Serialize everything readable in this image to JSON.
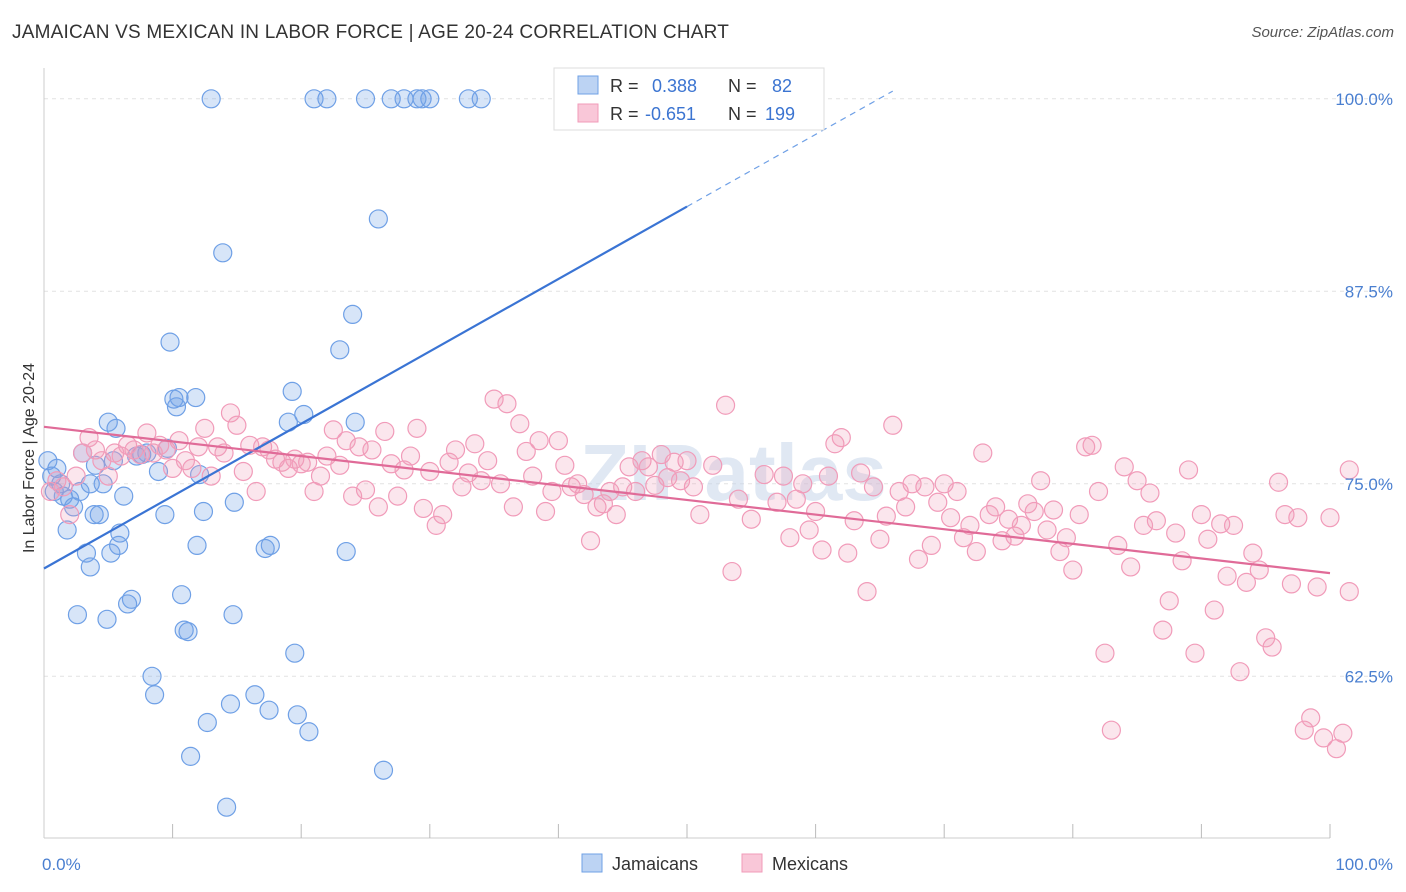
{
  "title": "JAMAICAN VS MEXICAN IN LABOR FORCE | AGE 20-24 CORRELATION CHART",
  "source": "Source: ZipAtlas.com",
  "watermark": "ZIPatlas",
  "colors": {
    "jamaicans": "#6fa0e6",
    "jamaicans_line": "#3a74d4",
    "mexicans": "#f19bb9",
    "mexicans_line": "#e06b98"
  },
  "chart_data": {
    "type": "scatter",
    "ylabel": "In Labor Force | Age 20-24",
    "xlim": [
      0,
      100
    ],
    "ylim": [
      52,
      102
    ],
    "y_ticks": [
      {
        "v": 100,
        "label": "100.0%"
      },
      {
        "v": 87.5,
        "label": "87.5%"
      },
      {
        "v": 75,
        "label": "75.0%"
      },
      {
        "v": 62.5,
        "label": "62.5%"
      }
    ],
    "x_tick_labels": {
      "left": "0.0%",
      "right": "100.0%"
    },
    "legend": {
      "r_label": "R =",
      "n_label": "N =",
      "rows": [
        {
          "series": "Jamaicans",
          "r": "0.388",
          "n": "82"
        },
        {
          "series": "Mexicans",
          "r": "-0.651",
          "n": "199"
        }
      ]
    },
    "series": [
      {
        "name": "Jamaicans",
        "trend": {
          "x0": 0,
          "y0": 69.5,
          "x1": 50,
          "y1": 93.0,
          "dash_to_x": 66,
          "dash_to_y": 100.5
        },
        "points": [
          [
            0.3,
            76.5
          ],
          [
            0.6,
            75.5
          ],
          [
            0.8,
            74.5
          ],
          [
            1.0,
            76.0
          ],
          [
            1.3,
            75.0
          ],
          [
            1.5,
            74.2
          ],
          [
            1.8,
            72.0
          ],
          [
            2.0,
            74.0
          ],
          [
            2.3,
            73.5
          ],
          [
            2.6,
            66.5
          ],
          [
            2.8,
            74.5
          ],
          [
            3.0,
            77.0
          ],
          [
            3.3,
            70.5
          ],
          [
            3.6,
            69.6
          ],
          [
            3.6,
            75.0
          ],
          [
            3.9,
            73.0
          ],
          [
            4.0,
            76.2
          ],
          [
            4.3,
            73.0
          ],
          [
            4.6,
            75.0
          ],
          [
            4.9,
            66.2
          ],
          [
            5.0,
            79.0
          ],
          [
            5.2,
            70.5
          ],
          [
            5.4,
            76.5
          ],
          [
            5.6,
            78.6
          ],
          [
            5.8,
            71.0
          ],
          [
            5.9,
            71.8
          ],
          [
            6.2,
            74.2
          ],
          [
            6.5,
            67.2
          ],
          [
            6.8,
            67.5
          ],
          [
            7.2,
            76.8
          ],
          [
            7.6,
            76.9
          ],
          [
            8.0,
            77.0
          ],
          [
            8.4,
            62.5
          ],
          [
            8.6,
            61.3
          ],
          [
            8.9,
            75.8
          ],
          [
            9.4,
            73.0
          ],
          [
            9.6,
            77.3
          ],
          [
            9.8,
            84.2
          ],
          [
            10.1,
            80.5
          ],
          [
            10.3,
            80.0
          ],
          [
            10.5,
            80.6
          ],
          [
            10.7,
            67.8
          ],
          [
            10.9,
            65.5
          ],
          [
            11.2,
            65.4
          ],
          [
            11.4,
            57.3
          ],
          [
            11.8,
            80.6
          ],
          [
            11.9,
            71.0
          ],
          [
            12.1,
            75.6
          ],
          [
            12.4,
            73.2
          ],
          [
            12.7,
            59.5
          ],
          [
            13.0,
            100
          ],
          [
            13.9,
            90.0
          ],
          [
            14.2,
            54.0
          ],
          [
            14.5,
            60.7
          ],
          [
            14.7,
            66.5
          ],
          [
            14.8,
            73.8
          ],
          [
            16.4,
            61.3
          ],
          [
            17.2,
            70.8
          ],
          [
            17.5,
            60.3
          ],
          [
            17.6,
            71.0
          ],
          [
            19.0,
            79.0
          ],
          [
            19.3,
            81.0
          ],
          [
            19.5,
            64.0
          ],
          [
            19.7,
            60.0
          ],
          [
            20.2,
            79.5
          ],
          [
            20.6,
            58.9
          ],
          [
            21.0,
            100
          ],
          [
            22.0,
            100
          ],
          [
            23.0,
            83.7
          ],
          [
            23.5,
            70.6
          ],
          [
            24.0,
            86.0
          ],
          [
            24.2,
            79.0
          ],
          [
            25.0,
            100
          ],
          [
            26.0,
            92.2
          ],
          [
            26.4,
            56.4
          ],
          [
            27.0,
            100
          ],
          [
            28.0,
            100
          ],
          [
            29.0,
            100
          ],
          [
            29.4,
            100
          ],
          [
            30.0,
            100
          ],
          [
            33.0,
            100
          ],
          [
            34.0,
            100
          ]
        ]
      },
      {
        "name": "Mexicans",
        "trend": {
          "x0": 0,
          "y0": 78.7,
          "x1": 100,
          "y1": 69.2
        },
        "points": [
          [
            0.5,
            74.5
          ],
          [
            1.0,
            75.2
          ],
          [
            1.5,
            74.8
          ],
          [
            2.0,
            73.0
          ],
          [
            2.5,
            75.5
          ],
          [
            3.0,
            77.0
          ],
          [
            3.5,
            78.0
          ],
          [
            4.0,
            77.2
          ],
          [
            4.5,
            76.5
          ],
          [
            5.0,
            75.5
          ],
          [
            5.5,
            77.0
          ],
          [
            6.0,
            76.8
          ],
          [
            6.5,
            77.5
          ],
          [
            7.0,
            77.2
          ],
          [
            7.5,
            76.9
          ],
          [
            8.0,
            78.3
          ],
          [
            8.5,
            77.0
          ],
          [
            9.0,
            77.5
          ],
          [
            9.5,
            77.2
          ],
          [
            10.0,
            76.0
          ],
          [
            10.5,
            77.8
          ],
          [
            11.0,
            76.5
          ],
          [
            11.5,
            76.0
          ],
          [
            12.0,
            77.4
          ],
          [
            12.5,
            78.6
          ],
          [
            13.0,
            75.5
          ],
          [
            13.5,
            77.4
          ],
          [
            14.0,
            77.0
          ],
          [
            14.5,
            79.6
          ],
          [
            15.0,
            78.8
          ],
          [
            15.5,
            75.8
          ],
          [
            16.0,
            77.5
          ],
          [
            16.5,
            74.5
          ],
          [
            17.0,
            77.4
          ],
          [
            17.5,
            77.2
          ],
          [
            18.0,
            76.6
          ],
          [
            18.5,
            76.4
          ],
          [
            19.0,
            76.0
          ],
          [
            19.5,
            76.6
          ],
          [
            20.0,
            76.3
          ],
          [
            20.5,
            76.4
          ],
          [
            21.0,
            74.5
          ],
          [
            21.5,
            75.5
          ],
          [
            22.0,
            76.8
          ],
          [
            22.5,
            78.5
          ],
          [
            23.0,
            76.2
          ],
          [
            23.5,
            77.8
          ],
          [
            24.0,
            74.2
          ],
          [
            24.5,
            77.4
          ],
          [
            25.0,
            74.6
          ],
          [
            25.5,
            77.2
          ],
          [
            26.0,
            73.5
          ],
          [
            26.5,
            78.4
          ],
          [
            27.0,
            76.3
          ],
          [
            27.5,
            74.2
          ],
          [
            28.0,
            75.9
          ],
          [
            28.5,
            76.8
          ],
          [
            29.0,
            78.6
          ],
          [
            29.5,
            73.4
          ],
          [
            30.0,
            75.8
          ],
          [
            30.5,
            72.3
          ],
          [
            31.0,
            73.0
          ],
          [
            31.5,
            76.4
          ],
          [
            32.0,
            77.2
          ],
          [
            32.5,
            74.8
          ],
          [
            33.0,
            75.7
          ],
          [
            33.5,
            77.6
          ],
          [
            34.0,
            75.2
          ],
          [
            34.5,
            76.5
          ],
          [
            35.0,
            80.5
          ],
          [
            35.5,
            75.0
          ],
          [
            36.0,
            80.2
          ],
          [
            36.5,
            73.5
          ],
          [
            37.0,
            78.9
          ],
          [
            37.5,
            77.1
          ],
          [
            38.0,
            75.5
          ],
          [
            38.5,
            77.8
          ],
          [
            39.0,
            73.2
          ],
          [
            39.5,
            74.5
          ],
          [
            40.0,
            77.8
          ],
          [
            40.5,
            76.2
          ],
          [
            41.0,
            74.8
          ],
          [
            41.5,
            75.0
          ],
          [
            42.0,
            74.3
          ],
          [
            42.5,
            71.3
          ],
          [
            43.0,
            73.5
          ],
          [
            43.5,
            73.7
          ],
          [
            44.0,
            74.5
          ],
          [
            44.5,
            73.0
          ],
          [
            45.0,
            74.8
          ],
          [
            45.5,
            76.1
          ],
          [
            46.0,
            74.5
          ],
          [
            46.5,
            76.5
          ],
          [
            47.0,
            76.1
          ],
          [
            47.5,
            74.9
          ],
          [
            48.0,
            76.9
          ],
          [
            48.5,
            75.4
          ],
          [
            49.0,
            76.4
          ],
          [
            49.5,
            75.2
          ],
          [
            50.0,
            76.5
          ],
          [
            50.5,
            74.8
          ],
          [
            51.0,
            73.0
          ],
          [
            52.0,
            76.2
          ],
          [
            53.0,
            80.1
          ],
          [
            53.5,
            69.3
          ],
          [
            54.0,
            74.0
          ],
          [
            55.0,
            72.7
          ],
          [
            56.0,
            75.6
          ],
          [
            57.0,
            73.8
          ],
          [
            57.5,
            75.5
          ],
          [
            58.0,
            71.5
          ],
          [
            58.5,
            74.0
          ],
          [
            59.0,
            75.0
          ],
          [
            59.5,
            72.0
          ],
          [
            60.0,
            73.2
          ],
          [
            60.5,
            70.7
          ],
          [
            61.0,
            75.5
          ],
          [
            61.5,
            77.6
          ],
          [
            62.0,
            78.0
          ],
          [
            62.5,
            70.5
          ],
          [
            63.0,
            72.6
          ],
          [
            63.5,
            75.7
          ],
          [
            64.0,
            68.0
          ],
          [
            64.5,
            74.8
          ],
          [
            65.0,
            71.4
          ],
          [
            65.5,
            72.9
          ],
          [
            66.0,
            78.8
          ],
          [
            66.5,
            74.5
          ],
          [
            67.0,
            73.5
          ],
          [
            67.5,
            75.0
          ],
          [
            68.0,
            70.1
          ],
          [
            68.5,
            74.8
          ],
          [
            69.0,
            71.0
          ],
          [
            69.5,
            73.8
          ],
          [
            70.0,
            75.0
          ],
          [
            70.5,
            72.8
          ],
          [
            71.0,
            74.5
          ],
          [
            71.5,
            71.5
          ],
          [
            72.0,
            72.3
          ],
          [
            72.5,
            70.6
          ],
          [
            73.0,
            77.0
          ],
          [
            73.5,
            73.0
          ],
          [
            74.0,
            73.5
          ],
          [
            74.5,
            71.3
          ],
          [
            75.0,
            72.7
          ],
          [
            75.5,
            71.6
          ],
          [
            76.0,
            72.3
          ],
          [
            76.5,
            73.7
          ],
          [
            77.0,
            73.2
          ],
          [
            77.5,
            75.2
          ],
          [
            78.0,
            72.0
          ],
          [
            78.5,
            73.3
          ],
          [
            79.0,
            70.6
          ],
          [
            79.5,
            71.5
          ],
          [
            80.0,
            69.4
          ],
          [
            80.5,
            73.0
          ],
          [
            81.0,
            77.4
          ],
          [
            81.5,
            77.5
          ],
          [
            82.0,
            74.5
          ],
          [
            82.5,
            64.0
          ],
          [
            83.0,
            59.0
          ],
          [
            83.5,
            71.0
          ],
          [
            84.0,
            76.1
          ],
          [
            84.5,
            69.6
          ],
          [
            85.0,
            75.2
          ],
          [
            85.5,
            72.3
          ],
          [
            86.0,
            74.4
          ],
          [
            86.5,
            72.6
          ],
          [
            87.0,
            65.5
          ],
          [
            87.5,
            67.4
          ],
          [
            88.0,
            71.8
          ],
          [
            88.5,
            70.0
          ],
          [
            89.0,
            75.9
          ],
          [
            89.5,
            64.0
          ],
          [
            90.0,
            73.0
          ],
          [
            90.5,
            71.4
          ],
          [
            91.0,
            66.8
          ],
          [
            91.5,
            72.4
          ],
          [
            92.0,
            69.0
          ],
          [
            92.5,
            72.3
          ],
          [
            93.0,
            62.8
          ],
          [
            93.5,
            68.6
          ],
          [
            94.0,
            70.5
          ],
          [
            94.5,
            69.4
          ],
          [
            95.0,
            65.0
          ],
          [
            95.5,
            64.4
          ],
          [
            96.0,
            75.1
          ],
          [
            96.5,
            73.0
          ],
          [
            97.0,
            68.5
          ],
          [
            97.5,
            72.8
          ],
          [
            98.0,
            59.0
          ],
          [
            98.5,
            59.8
          ],
          [
            99.0,
            68.3
          ],
          [
            99.5,
            58.5
          ],
          [
            100.0,
            72.8
          ],
          [
            100.5,
            57.8
          ],
          [
            101.0,
            58.8
          ],
          [
            101.5,
            68.0
          ],
          [
            102.0,
            75.9
          ]
        ]
      }
    ]
  },
  "legend_bottom": [
    {
      "label": "Jamaicans",
      "series": "jamaicans"
    },
    {
      "label": "Mexicans",
      "series": "mexicans"
    }
  ]
}
